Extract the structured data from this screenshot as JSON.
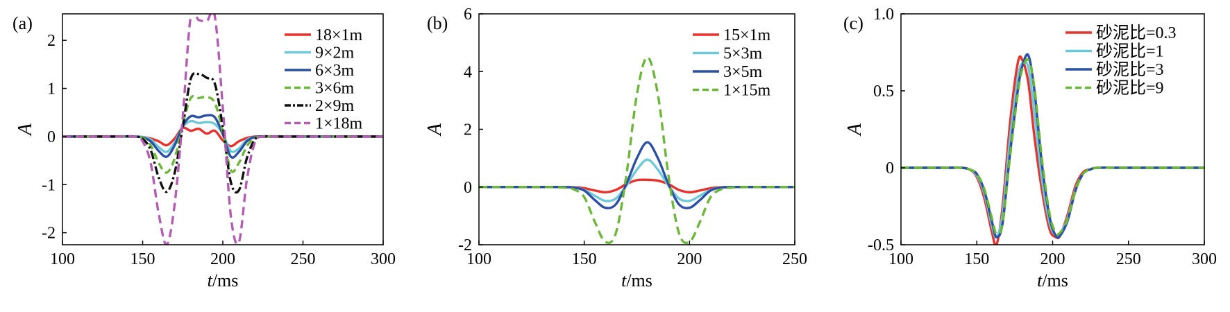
{
  "chart_data": [
    {
      "type": "line",
      "panel_label": "(a)",
      "xlabel_italic": "t",
      "xlabel_rest": "/ms",
      "ylabel": "A",
      "xlim": [
        100,
        300
      ],
      "ylim": [
        -2.25,
        2.55
      ],
      "xticks": [
        100,
        150,
        200,
        250,
        300
      ],
      "yticks": [
        -2,
        -1,
        0,
        1,
        2
      ],
      "grid": false,
      "legend": "top-right",
      "x": [
        100,
        130,
        145,
        150,
        155,
        160,
        165,
        170,
        175,
        180,
        185,
        190,
        195,
        200,
        205,
        210,
        215,
        220,
        225,
        230,
        240,
        250,
        270,
        300
      ],
      "series": [
        {
          "name": "18×1m",
          "color": "#e8312a",
          "dash": "solid",
          "values": [
            0,
            0,
            0,
            -0.01,
            -0.04,
            -0.1,
            -0.18,
            -0.04,
            0.18,
            0.12,
            0.16,
            0.06,
            0.12,
            -0.08,
            -0.2,
            -0.1,
            -0.03,
            0,
            0,
            0,
            0,
            0,
            0,
            0
          ]
        },
        {
          "name": "9×2m",
          "color": "#6fc8d8",
          "dash": "solid",
          "values": [
            0,
            0,
            0,
            -0.01,
            -0.06,
            -0.22,
            -0.32,
            -0.12,
            0.2,
            0.32,
            0.28,
            0.3,
            0.26,
            0.05,
            -0.3,
            -0.25,
            -0.07,
            -0.01,
            0,
            0,
            0,
            0,
            0,
            0
          ]
        },
        {
          "name": "6×3m",
          "color": "#2a4fa3",
          "dash": "solid",
          "values": [
            0,
            0,
            0,
            -0.02,
            -0.1,
            -0.3,
            -0.42,
            -0.18,
            0.22,
            0.42,
            0.4,
            0.44,
            0.4,
            0.05,
            -0.42,
            -0.32,
            -0.1,
            -0.01,
            0,
            0,
            0,
            0,
            0,
            0
          ]
        },
        {
          "name": "3×6m",
          "color": "#6cb63a",
          "dash": "10,6",
          "values": [
            0,
            0,
            0,
            -0.03,
            -0.18,
            -0.55,
            -0.75,
            -0.45,
            0.25,
            0.8,
            0.8,
            0.82,
            0.7,
            0.1,
            -0.7,
            -0.55,
            -0.2,
            -0.03,
            0,
            0,
            0,
            0,
            0,
            0
          ]
        },
        {
          "name": "2×9m",
          "color": "#111111",
          "dash": "12,4,3,4",
          "values": [
            0,
            0,
            0,
            -0.05,
            -0.28,
            -0.85,
            -1.15,
            -0.75,
            0.2,
            1.2,
            1.3,
            1.22,
            1.1,
            0.2,
            -0.95,
            -1.12,
            -0.45,
            -0.06,
            0,
            0,
            0,
            0,
            0,
            0
          ]
        },
        {
          "name": "1×18m",
          "color": "#b25db2",
          "dash": "12,7",
          "values": [
            0,
            0,
            0,
            -0.1,
            -0.55,
            -1.6,
            -2.25,
            -1.4,
            0.4,
            2.5,
            2.42,
            2.4,
            2.5,
            0.6,
            -1.65,
            -2.2,
            -0.9,
            -0.12,
            0,
            0,
            0,
            0,
            0,
            0
          ]
        }
      ]
    },
    {
      "type": "line",
      "panel_label": "(b)",
      "xlabel_italic": "t",
      "xlabel_rest": "/ms",
      "ylabel": "A",
      "xlim": [
        100,
        250
      ],
      "ylim": [
        -2.0,
        6.0
      ],
      "xticks": [
        100,
        150,
        200,
        250
      ],
      "yticks": [
        -2,
        0,
        2,
        4,
        6
      ],
      "grid": false,
      "legend": "top-right",
      "x": [
        100,
        130,
        140,
        145,
        150,
        155,
        160,
        165,
        170,
        175,
        180,
        185,
        190,
        195,
        200,
        205,
        210,
        215,
        220,
        230,
        250
      ],
      "series": [
        {
          "name": "15×1m",
          "color": "#e8312a",
          "dash": "solid",
          "values": [
            0,
            0,
            0,
            -0.01,
            -0.04,
            -0.12,
            -0.18,
            -0.1,
            0.1,
            0.24,
            0.25,
            0.22,
            0.1,
            -0.1,
            -0.18,
            -0.12,
            -0.04,
            -0.01,
            0,
            0,
            0
          ]
        },
        {
          "name": "5×3m",
          "color": "#6fc8d8",
          "dash": "solid",
          "values": [
            0,
            0,
            0,
            -0.02,
            -0.1,
            -0.3,
            -0.48,
            -0.4,
            0.05,
            0.6,
            0.95,
            0.6,
            0.05,
            -0.4,
            -0.48,
            -0.3,
            -0.1,
            -0.02,
            0,
            0,
            0
          ]
        },
        {
          "name": "3×5m",
          "color": "#2a4fa3",
          "dash": "solid",
          "values": [
            0,
            0,
            0,
            -0.02,
            -0.12,
            -0.45,
            -0.72,
            -0.6,
            0.1,
            1.0,
            1.55,
            1.0,
            0.1,
            -0.6,
            -0.72,
            -0.45,
            -0.12,
            -0.02,
            0,
            0,
            0
          ]
        },
        {
          "name": "1×15m",
          "color": "#6cb63a",
          "dash": "12,7",
          "values": [
            0,
            0,
            -0.02,
            -0.08,
            -0.35,
            -1.2,
            -1.9,
            -1.6,
            0.4,
            3.2,
            4.5,
            3.2,
            0.4,
            -1.6,
            -1.9,
            -1.2,
            -0.35,
            -0.08,
            -0.02,
            0,
            0
          ]
        }
      ]
    },
    {
      "type": "line",
      "panel_label": "(c)",
      "xlabel_italic": "t",
      "xlabel_rest": "/ms",
      "ylabel": "A",
      "xlim": [
        100,
        300
      ],
      "ylim": [
        -0.5,
        1.0
      ],
      "xticks": [
        100,
        150,
        200,
        250,
        300
      ],
      "yticks": [
        -0.5,
        0,
        0.5,
        1.0
      ],
      "ytick_labels": [
        "-0.5",
        "0",
        "0.5",
        "1.0"
      ],
      "grid": false,
      "legend": "top-right",
      "x": [
        100,
        130,
        140,
        145,
        150,
        155,
        160,
        163,
        167,
        172,
        177,
        180,
        184,
        188,
        193,
        198,
        202,
        205,
        210,
        215,
        220,
        225,
        230,
        250,
        300
      ],
      "series": [
        {
          "name": "砂泥比=0.3",
          "color": "#e8312a",
          "dash": "solid",
          "values": [
            0,
            0,
            0,
            -0.01,
            -0.06,
            -0.2,
            -0.42,
            -0.5,
            -0.25,
            0.3,
            0.68,
            0.7,
            0.55,
            0.2,
            -0.15,
            -0.4,
            -0.45,
            -0.44,
            -0.3,
            -0.12,
            -0.03,
            -0.01,
            0,
            0,
            0
          ]
        },
        {
          "name": "砂泥比=1",
          "color": "#6fc8d8",
          "dash": "solid",
          "values": [
            0,
            0,
            0,
            -0.01,
            -0.05,
            -0.17,
            -0.38,
            -0.45,
            -0.3,
            0.2,
            0.58,
            0.68,
            0.65,
            0.35,
            -0.08,
            -0.36,
            -0.44,
            -0.43,
            -0.32,
            -0.14,
            -0.04,
            -0.01,
            0,
            0,
            0
          ]
        },
        {
          "name": "砂泥比=3",
          "color": "#2a4fa3",
          "dash": "solid",
          "values": [
            0,
            0,
            0,
            -0.01,
            -0.04,
            -0.15,
            -0.35,
            -0.45,
            -0.36,
            0.1,
            0.5,
            0.66,
            0.73,
            0.5,
            0.02,
            -0.32,
            -0.44,
            -0.44,
            -0.34,
            -0.15,
            -0.04,
            -0.01,
            0,
            0,
            0
          ]
        },
        {
          "name": "砂泥比=9",
          "color": "#6cb63a",
          "dash": "12,7",
          "values": [
            0,
            0,
            0,
            -0.01,
            -0.04,
            -0.14,
            -0.33,
            -0.43,
            -0.36,
            0.08,
            0.48,
            0.64,
            0.7,
            0.52,
            0.05,
            -0.3,
            -0.42,
            -0.42,
            -0.33,
            -0.15,
            -0.04,
            -0.01,
            0,
            0,
            0
          ]
        }
      ]
    }
  ]
}
